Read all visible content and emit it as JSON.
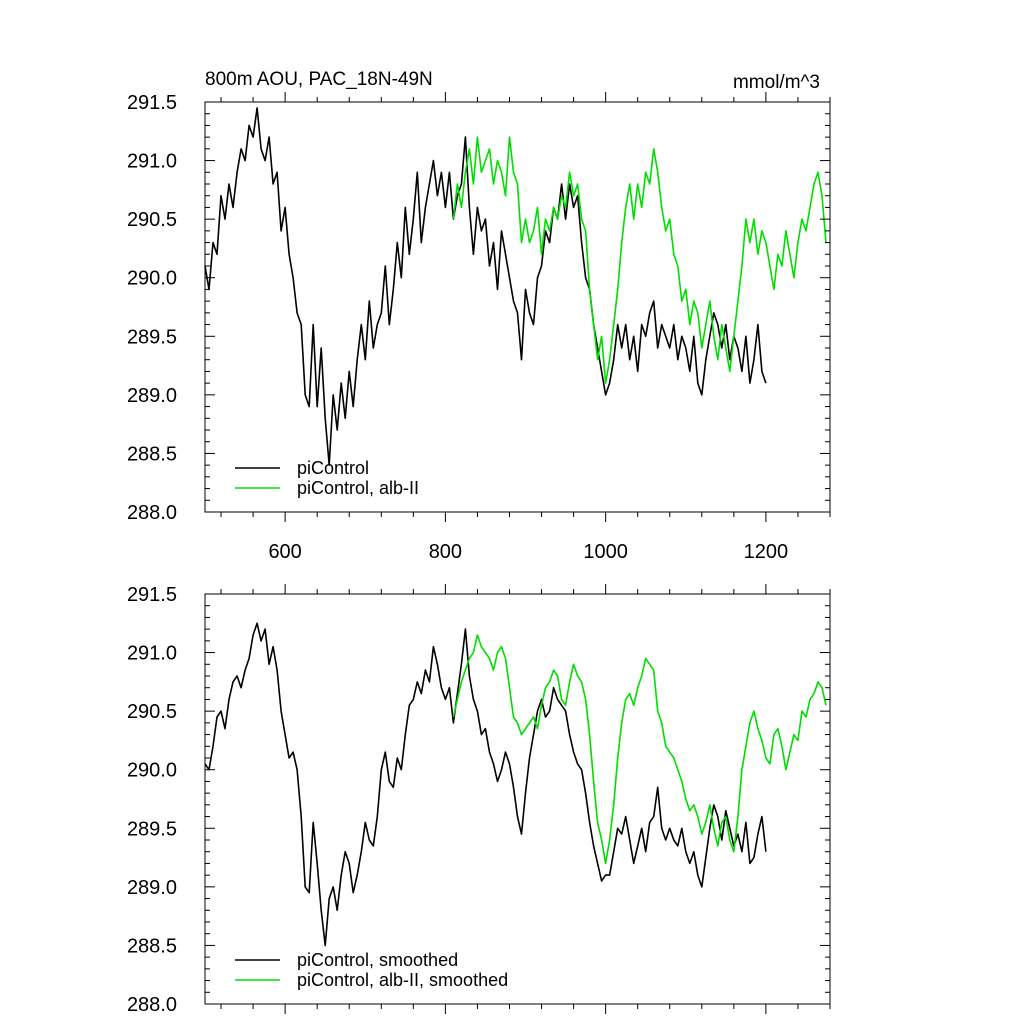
{
  "chart_data": [
    {
      "type": "line",
      "title": "800m AOU, PAC_18N-49N",
      "units": "mmol/m^3",
      "xlim": [
        500,
        1280
      ],
      "ylim": [
        288.0,
        291.5
      ],
      "xticks": [
        600,
        800,
        1000,
        1200
      ],
      "yticks": [
        288.0,
        288.5,
        289.0,
        289.5,
        290.0,
        290.5,
        291.0,
        291.5
      ],
      "ytick_labels": [
        "288.0",
        "288.5",
        "289.0",
        "289.5",
        "290.0",
        "290.5",
        "291.0",
        "291.5"
      ],
      "show_x_tick_labels": true,
      "legend_position": "bottom-left",
      "series": [
        {
          "name": "piControl",
          "color": "#000000",
          "x": [
            500,
            505,
            510,
            515,
            520,
            525,
            530,
            535,
            540,
            545,
            550,
            555,
            560,
            565,
            570,
            575,
            580,
            585,
            590,
            595,
            600,
            605,
            610,
            615,
            620,
            625,
            630,
            635,
            640,
            645,
            650,
            655,
            660,
            665,
            670,
            675,
            680,
            685,
            690,
            695,
            700,
            705,
            710,
            715,
            720,
            725,
            730,
            735,
            740,
            745,
            750,
            755,
            760,
            765,
            770,
            775,
            780,
            785,
            790,
            795,
            800,
            805,
            810,
            815,
            820,
            825,
            830,
            835,
            840,
            845,
            850,
            855,
            860,
            865,
            870,
            875,
            880,
            885,
            890,
            895,
            900,
            905,
            910,
            915,
            920,
            925,
            930,
            935,
            940,
            945,
            950,
            955,
            960,
            965,
            970,
            975,
            980,
            985,
            990,
            995,
            1000,
            1005,
            1010,
            1015,
            1020,
            1025,
            1030,
            1035,
            1040,
            1045,
            1050,
            1055,
            1060,
            1065,
            1070,
            1075,
            1080,
            1085,
            1090,
            1095,
            1100,
            1105,
            1110,
            1115,
            1120,
            1125,
            1130,
            1135,
            1140,
            1145,
            1150,
            1155,
            1160,
            1165,
            1170,
            1175,
            1180,
            1185,
            1190,
            1195,
            1200
          ],
          "y": [
            290.1,
            289.9,
            290.3,
            290.2,
            290.7,
            290.5,
            290.8,
            290.6,
            290.9,
            291.1,
            291.0,
            291.3,
            291.2,
            291.45,
            291.1,
            291.0,
            291.2,
            290.8,
            290.9,
            290.4,
            290.6,
            290.2,
            290.0,
            289.7,
            289.6,
            289.0,
            288.9,
            289.6,
            288.9,
            289.4,
            288.8,
            288.4,
            289.0,
            288.7,
            289.1,
            288.8,
            289.2,
            288.9,
            289.3,
            289.6,
            289.3,
            289.8,
            289.4,
            289.6,
            289.7,
            290.1,
            289.6,
            289.9,
            290.3,
            290.0,
            290.6,
            290.2,
            290.5,
            290.9,
            290.3,
            290.6,
            290.8,
            291.0,
            290.7,
            290.9,
            290.6,
            290.9,
            290.5,
            290.7,
            290.8,
            291.2,
            290.6,
            290.2,
            290.6,
            290.4,
            290.5,
            290.1,
            290.3,
            289.9,
            290.4,
            290.2,
            290.0,
            289.8,
            289.7,
            289.3,
            289.9,
            289.7,
            289.6,
            290.0,
            290.1,
            290.4,
            290.3,
            290.6,
            290.5,
            290.8,
            290.5,
            290.8,
            290.6,
            290.7,
            290.3,
            290.0,
            289.9,
            289.6,
            289.4,
            289.2,
            289.0,
            289.1,
            289.3,
            289.6,
            289.4,
            289.6,
            289.3,
            289.5,
            289.2,
            289.6,
            289.5,
            289.7,
            289.8,
            289.4,
            289.6,
            289.5,
            289.4,
            289.6,
            289.3,
            289.5,
            289.4,
            289.2,
            289.5,
            289.1,
            289.0,
            289.3,
            289.5,
            289.7,
            289.6,
            289.4,
            289.6,
            289.3,
            289.5,
            289.4,
            289.2,
            289.5,
            289.1,
            289.3,
            289.6,
            289.2,
            289.1
          ]
        },
        {
          "name": "piControl, alb-II",
          "color": "#00dd00",
          "x": [
            810,
            815,
            820,
            825,
            830,
            835,
            840,
            845,
            850,
            855,
            860,
            865,
            870,
            875,
            880,
            885,
            890,
            895,
            900,
            905,
            910,
            915,
            920,
            925,
            930,
            935,
            940,
            945,
            950,
            955,
            960,
            965,
            970,
            975,
            980,
            985,
            990,
            995,
            1000,
            1005,
            1010,
            1015,
            1020,
            1025,
            1030,
            1035,
            1040,
            1045,
            1050,
            1055,
            1060,
            1065,
            1070,
            1075,
            1080,
            1085,
            1090,
            1095,
            1100,
            1105,
            1110,
            1115,
            1120,
            1125,
            1130,
            1135,
            1140,
            1145,
            1150,
            1155,
            1160,
            1165,
            1170,
            1175,
            1180,
            1185,
            1190,
            1195,
            1200,
            1205,
            1210,
            1215,
            1220,
            1225,
            1230,
            1235,
            1240,
            1245,
            1250,
            1255,
            1260,
            1265,
            1270,
            1275
          ],
          "y": [
            290.5,
            290.8,
            290.6,
            290.9,
            291.1,
            290.8,
            291.2,
            290.9,
            291.0,
            291.1,
            290.8,
            291.0,
            290.9,
            290.7,
            291.2,
            290.9,
            290.8,
            290.3,
            290.5,
            290.3,
            290.4,
            290.6,
            290.2,
            290.5,
            290.4,
            290.6,
            290.5,
            290.7,
            290.6,
            290.9,
            290.7,
            290.8,
            290.5,
            290.4,
            289.9,
            289.6,
            289.3,
            289.5,
            289.1,
            289.3,
            289.6,
            289.9,
            290.3,
            290.6,
            290.8,
            290.5,
            290.8,
            290.6,
            290.9,
            290.8,
            291.1,
            290.9,
            290.6,
            290.4,
            290.5,
            290.2,
            290.1,
            289.8,
            289.9,
            289.6,
            289.8,
            289.7,
            289.4,
            289.6,
            289.8,
            289.5,
            289.3,
            289.6,
            289.4,
            289.2,
            289.5,
            289.8,
            290.1,
            290.5,
            290.3,
            290.5,
            290.2,
            290.4,
            290.3,
            290.1,
            289.9,
            290.2,
            290.1,
            290.4,
            290.2,
            290.0,
            290.3,
            290.5,
            290.4,
            290.6,
            290.8,
            290.9,
            290.7,
            290.3
          ]
        }
      ]
    },
    {
      "type": "line",
      "title": "",
      "units": "",
      "xlim": [
        500,
        1280
      ],
      "ylim": [
        288.0,
        291.5
      ],
      "xticks": [
        600,
        800,
        1000,
        1200
      ],
      "yticks": [
        288.0,
        288.5,
        289.0,
        289.5,
        290.0,
        290.5,
        291.0,
        291.5
      ],
      "ytick_labels": [
        "288.0",
        "288.5",
        "289.0",
        "289.5",
        "290.0",
        "290.5",
        "291.0",
        "291.5"
      ],
      "show_x_tick_labels": false,
      "legend_position": "bottom-left",
      "series": [
        {
          "name": "piControl, smoothed",
          "color": "#000000",
          "x": [
            500,
            505,
            510,
            515,
            520,
            525,
            530,
            535,
            540,
            545,
            550,
            555,
            560,
            565,
            570,
            575,
            580,
            585,
            590,
            595,
            600,
            605,
            610,
            615,
            620,
            625,
            630,
            635,
            640,
            645,
            650,
            655,
            660,
            665,
            670,
            675,
            680,
            685,
            690,
            695,
            700,
            705,
            710,
            715,
            720,
            725,
            730,
            735,
            740,
            745,
            750,
            755,
            760,
            765,
            770,
            775,
            780,
            785,
            790,
            795,
            800,
            805,
            810,
            815,
            820,
            825,
            830,
            835,
            840,
            845,
            850,
            855,
            860,
            865,
            870,
            875,
            880,
            885,
            890,
            895,
            900,
            905,
            910,
            915,
            920,
            925,
            930,
            935,
            940,
            945,
            950,
            955,
            960,
            965,
            970,
            975,
            980,
            985,
            990,
            995,
            1000,
            1005,
            1010,
            1015,
            1020,
            1025,
            1030,
            1035,
            1040,
            1045,
            1050,
            1055,
            1060,
            1065,
            1070,
            1075,
            1080,
            1085,
            1090,
            1095,
            1100,
            1105,
            1110,
            1115,
            1120,
            1125,
            1130,
            1135,
            1140,
            1145,
            1150,
            1155,
            1160,
            1165,
            1170,
            1175,
            1180,
            1185,
            1190,
            1195,
            1200
          ],
          "y": [
            290.05,
            290.0,
            290.2,
            290.45,
            290.5,
            290.35,
            290.6,
            290.75,
            290.8,
            290.7,
            290.85,
            290.95,
            291.15,
            291.25,
            291.1,
            291.2,
            290.9,
            291.05,
            290.85,
            290.5,
            290.3,
            290.1,
            290.15,
            290.0,
            289.6,
            289.0,
            288.95,
            289.55,
            289.2,
            288.8,
            288.5,
            288.9,
            289.0,
            288.8,
            289.1,
            289.3,
            289.2,
            288.95,
            289.1,
            289.3,
            289.55,
            289.4,
            289.35,
            289.6,
            290.0,
            290.15,
            289.9,
            289.85,
            290.1,
            290.0,
            290.3,
            290.55,
            290.6,
            290.75,
            290.65,
            290.85,
            290.75,
            291.05,
            290.9,
            290.7,
            290.6,
            290.7,
            290.4,
            290.65,
            290.9,
            291.2,
            290.8,
            290.6,
            290.5,
            290.3,
            290.35,
            290.15,
            290.05,
            289.9,
            290.0,
            290.15,
            290.05,
            289.85,
            289.6,
            289.45,
            289.8,
            290.1,
            290.3,
            290.5,
            290.6,
            290.45,
            290.5,
            290.7,
            290.6,
            290.55,
            290.5,
            290.3,
            290.15,
            290.05,
            290.0,
            289.8,
            289.55,
            289.35,
            289.2,
            289.05,
            289.1,
            289.1,
            289.3,
            289.5,
            289.45,
            289.6,
            289.4,
            289.2,
            289.35,
            289.5,
            289.3,
            289.55,
            289.6,
            289.85,
            289.5,
            289.4,
            289.5,
            289.4,
            289.35,
            289.5,
            289.3,
            289.2,
            289.3,
            289.1,
            289.0,
            289.25,
            289.5,
            289.7,
            289.6,
            289.4,
            289.65,
            289.5,
            289.35,
            289.45,
            289.3,
            289.55,
            289.2,
            289.25,
            289.45,
            289.6,
            289.3
          ]
        },
        {
          "name": "piControl, alb-II, smoothed",
          "color": "#00dd00",
          "x": [
            810,
            815,
            820,
            825,
            830,
            835,
            840,
            845,
            850,
            855,
            860,
            865,
            870,
            875,
            880,
            885,
            890,
            895,
            900,
            905,
            910,
            915,
            920,
            925,
            930,
            935,
            940,
            945,
            950,
            955,
            960,
            965,
            970,
            975,
            980,
            985,
            990,
            995,
            1000,
            1005,
            1010,
            1015,
            1020,
            1025,
            1030,
            1035,
            1040,
            1045,
            1050,
            1055,
            1060,
            1065,
            1070,
            1075,
            1080,
            1085,
            1090,
            1095,
            1100,
            1105,
            1110,
            1115,
            1120,
            1125,
            1130,
            1135,
            1140,
            1145,
            1150,
            1155,
            1160,
            1165,
            1170,
            1175,
            1180,
            1185,
            1190,
            1195,
            1200,
            1205,
            1210,
            1215,
            1220,
            1225,
            1230,
            1235,
            1240,
            1245,
            1250,
            1255,
            1260,
            1265,
            1270,
            1275
          ],
          "y": [
            290.45,
            290.6,
            290.75,
            290.85,
            290.95,
            291.0,
            291.15,
            291.05,
            291.0,
            290.95,
            290.85,
            291.0,
            291.05,
            290.95,
            290.7,
            290.45,
            290.4,
            290.3,
            290.35,
            290.4,
            290.45,
            290.35,
            290.55,
            290.7,
            290.75,
            290.85,
            290.8,
            290.6,
            290.55,
            290.75,
            290.9,
            290.8,
            290.75,
            290.6,
            290.3,
            289.9,
            289.55,
            289.4,
            289.2,
            289.4,
            289.7,
            290.1,
            290.4,
            290.6,
            290.65,
            290.55,
            290.7,
            290.8,
            290.95,
            290.9,
            290.85,
            290.5,
            290.4,
            290.2,
            290.15,
            290.1,
            290.0,
            289.9,
            289.75,
            289.65,
            289.7,
            289.6,
            289.45,
            289.55,
            289.7,
            289.5,
            289.35,
            289.55,
            289.6,
            289.4,
            289.3,
            289.6,
            290.0,
            290.2,
            290.4,
            290.5,
            290.35,
            290.25,
            290.1,
            290.05,
            290.3,
            290.35,
            290.2,
            290.0,
            290.15,
            290.3,
            290.25,
            290.5,
            290.45,
            290.6,
            290.65,
            290.75,
            290.7,
            290.55
          ]
        }
      ]
    }
  ]
}
